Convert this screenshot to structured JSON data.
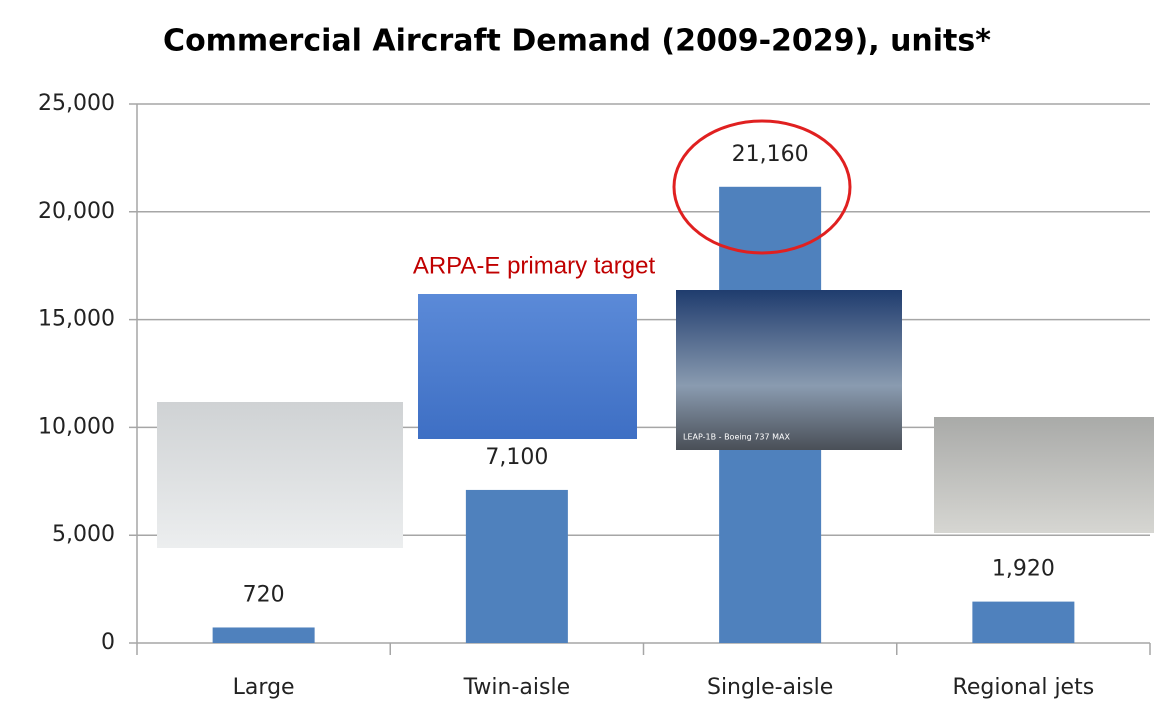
{
  "chart_data": {
    "type": "bar",
    "title": "Commercial Aircraft Demand (2009-2029), units*",
    "categories": [
      "Large",
      "Twin-aisle",
      "Single-aisle",
      "Regional jets"
    ],
    "values": [
      720,
      7100,
      21160,
      1920
    ],
    "value_labels": [
      "720",
      "7,100",
      "21,160",
      "1,920"
    ],
    "color": "#4f81bd",
    "ylim": [
      0,
      25000
    ],
    "yticks": [
      0,
      {
        "value": 5000,
        "label": "5,000"
      },
      {
        "value": 10000,
        "label": "10,000"
      },
      {
        "value": 15000,
        "label": "15,000"
      },
      {
        "value": 20000,
        "label": "20,000"
      },
      {
        "value": 25000,
        "label": "25,000"
      }
    ],
    "grid": true,
    "annotation": "ARPA-E primary target",
    "image_caption": "LEAP-1B - Boeing 737 MAX"
  }
}
